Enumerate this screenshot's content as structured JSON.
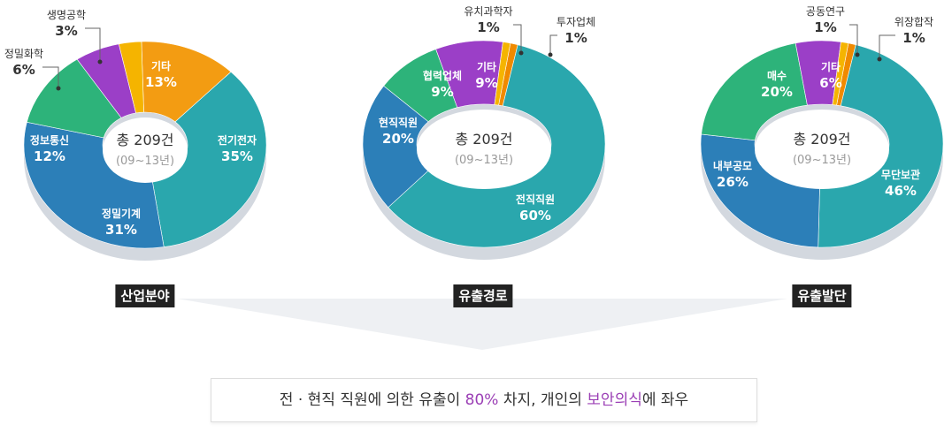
{
  "chart_data": [
    {
      "type": "pie",
      "title": "산업분야",
      "center_label": "총 209건",
      "center_sublabel": "(09~13년)",
      "slices": [
        {
          "label": "기타",
          "value": 13,
          "display": "13%",
          "color": "#f39c12"
        },
        {
          "label": "전기전자",
          "value": 35,
          "display": "35%",
          "color": "#2aa7ad"
        },
        {
          "label": "정밀기계",
          "value": 31,
          "display": "31%",
          "color": "#2c7fb8"
        },
        {
          "label": "정보통신",
          "value": 12,
          "display": "12%",
          "color": "#2db37a"
        },
        {
          "label": "정밀화학",
          "value": 6,
          "display": "6%",
          "color": "#9b3fc7"
        },
        {
          "label": "생명공학",
          "value": 3,
          "display": "3%",
          "color": "#f5b400"
        }
      ]
    },
    {
      "type": "pie",
      "title": "유출경로",
      "center_label": "총 209건",
      "center_sublabel": "(09~13년)",
      "slices": [
        {
          "label": "투자업체",
          "value": 1,
          "display": "1%",
          "color": "#f08a00"
        },
        {
          "label": "전직직원",
          "value": 60,
          "display": "60%",
          "color": "#2aa7ad"
        },
        {
          "label": "현직직원",
          "value": 20,
          "display": "20%",
          "color": "#2c7fb8"
        },
        {
          "label": "협력업체",
          "value": 9,
          "display": "9%",
          "color": "#2db37a"
        },
        {
          "label": "기타",
          "value": 9,
          "display": "9%",
          "color": "#9b3fc7"
        },
        {
          "label": "유치과학자",
          "value": 1,
          "display": "1%",
          "color": "#f5b400"
        }
      ]
    },
    {
      "type": "pie",
      "title": "유출발단",
      "center_label": "총 209건",
      "center_sublabel": "(09~13년)",
      "slices": [
        {
          "label": "위장합작",
          "value": 1,
          "display": "1%",
          "color": "#f08a00"
        },
        {
          "label": "무단보관",
          "value": 46,
          "display": "46%",
          "color": "#2aa7ad"
        },
        {
          "label": "내부공모",
          "value": 26,
          "display": "26%",
          "color": "#2c7fb8"
        },
        {
          "label": "매수",
          "value": 20,
          "display": "20%",
          "color": "#2db37a"
        },
        {
          "label": "기타",
          "value": 6,
          "display": "6%",
          "color": "#9b3fc7"
        },
        {
          "label": "공동연구",
          "value": 1,
          "display": "1%",
          "color": "#f5b400"
        }
      ]
    }
  ],
  "summary": {
    "prefix": "전 · 현직 직원에 의한 유출이 ",
    "highlight1": "80%",
    "middle": " 차지, 개인의 ",
    "highlight2": "보안의식",
    "suffix": "에 좌우"
  },
  "colors": {
    "shadow": "#d3d8df",
    "funnel": "#eef0f3",
    "highlight": "#9b3fb5"
  }
}
